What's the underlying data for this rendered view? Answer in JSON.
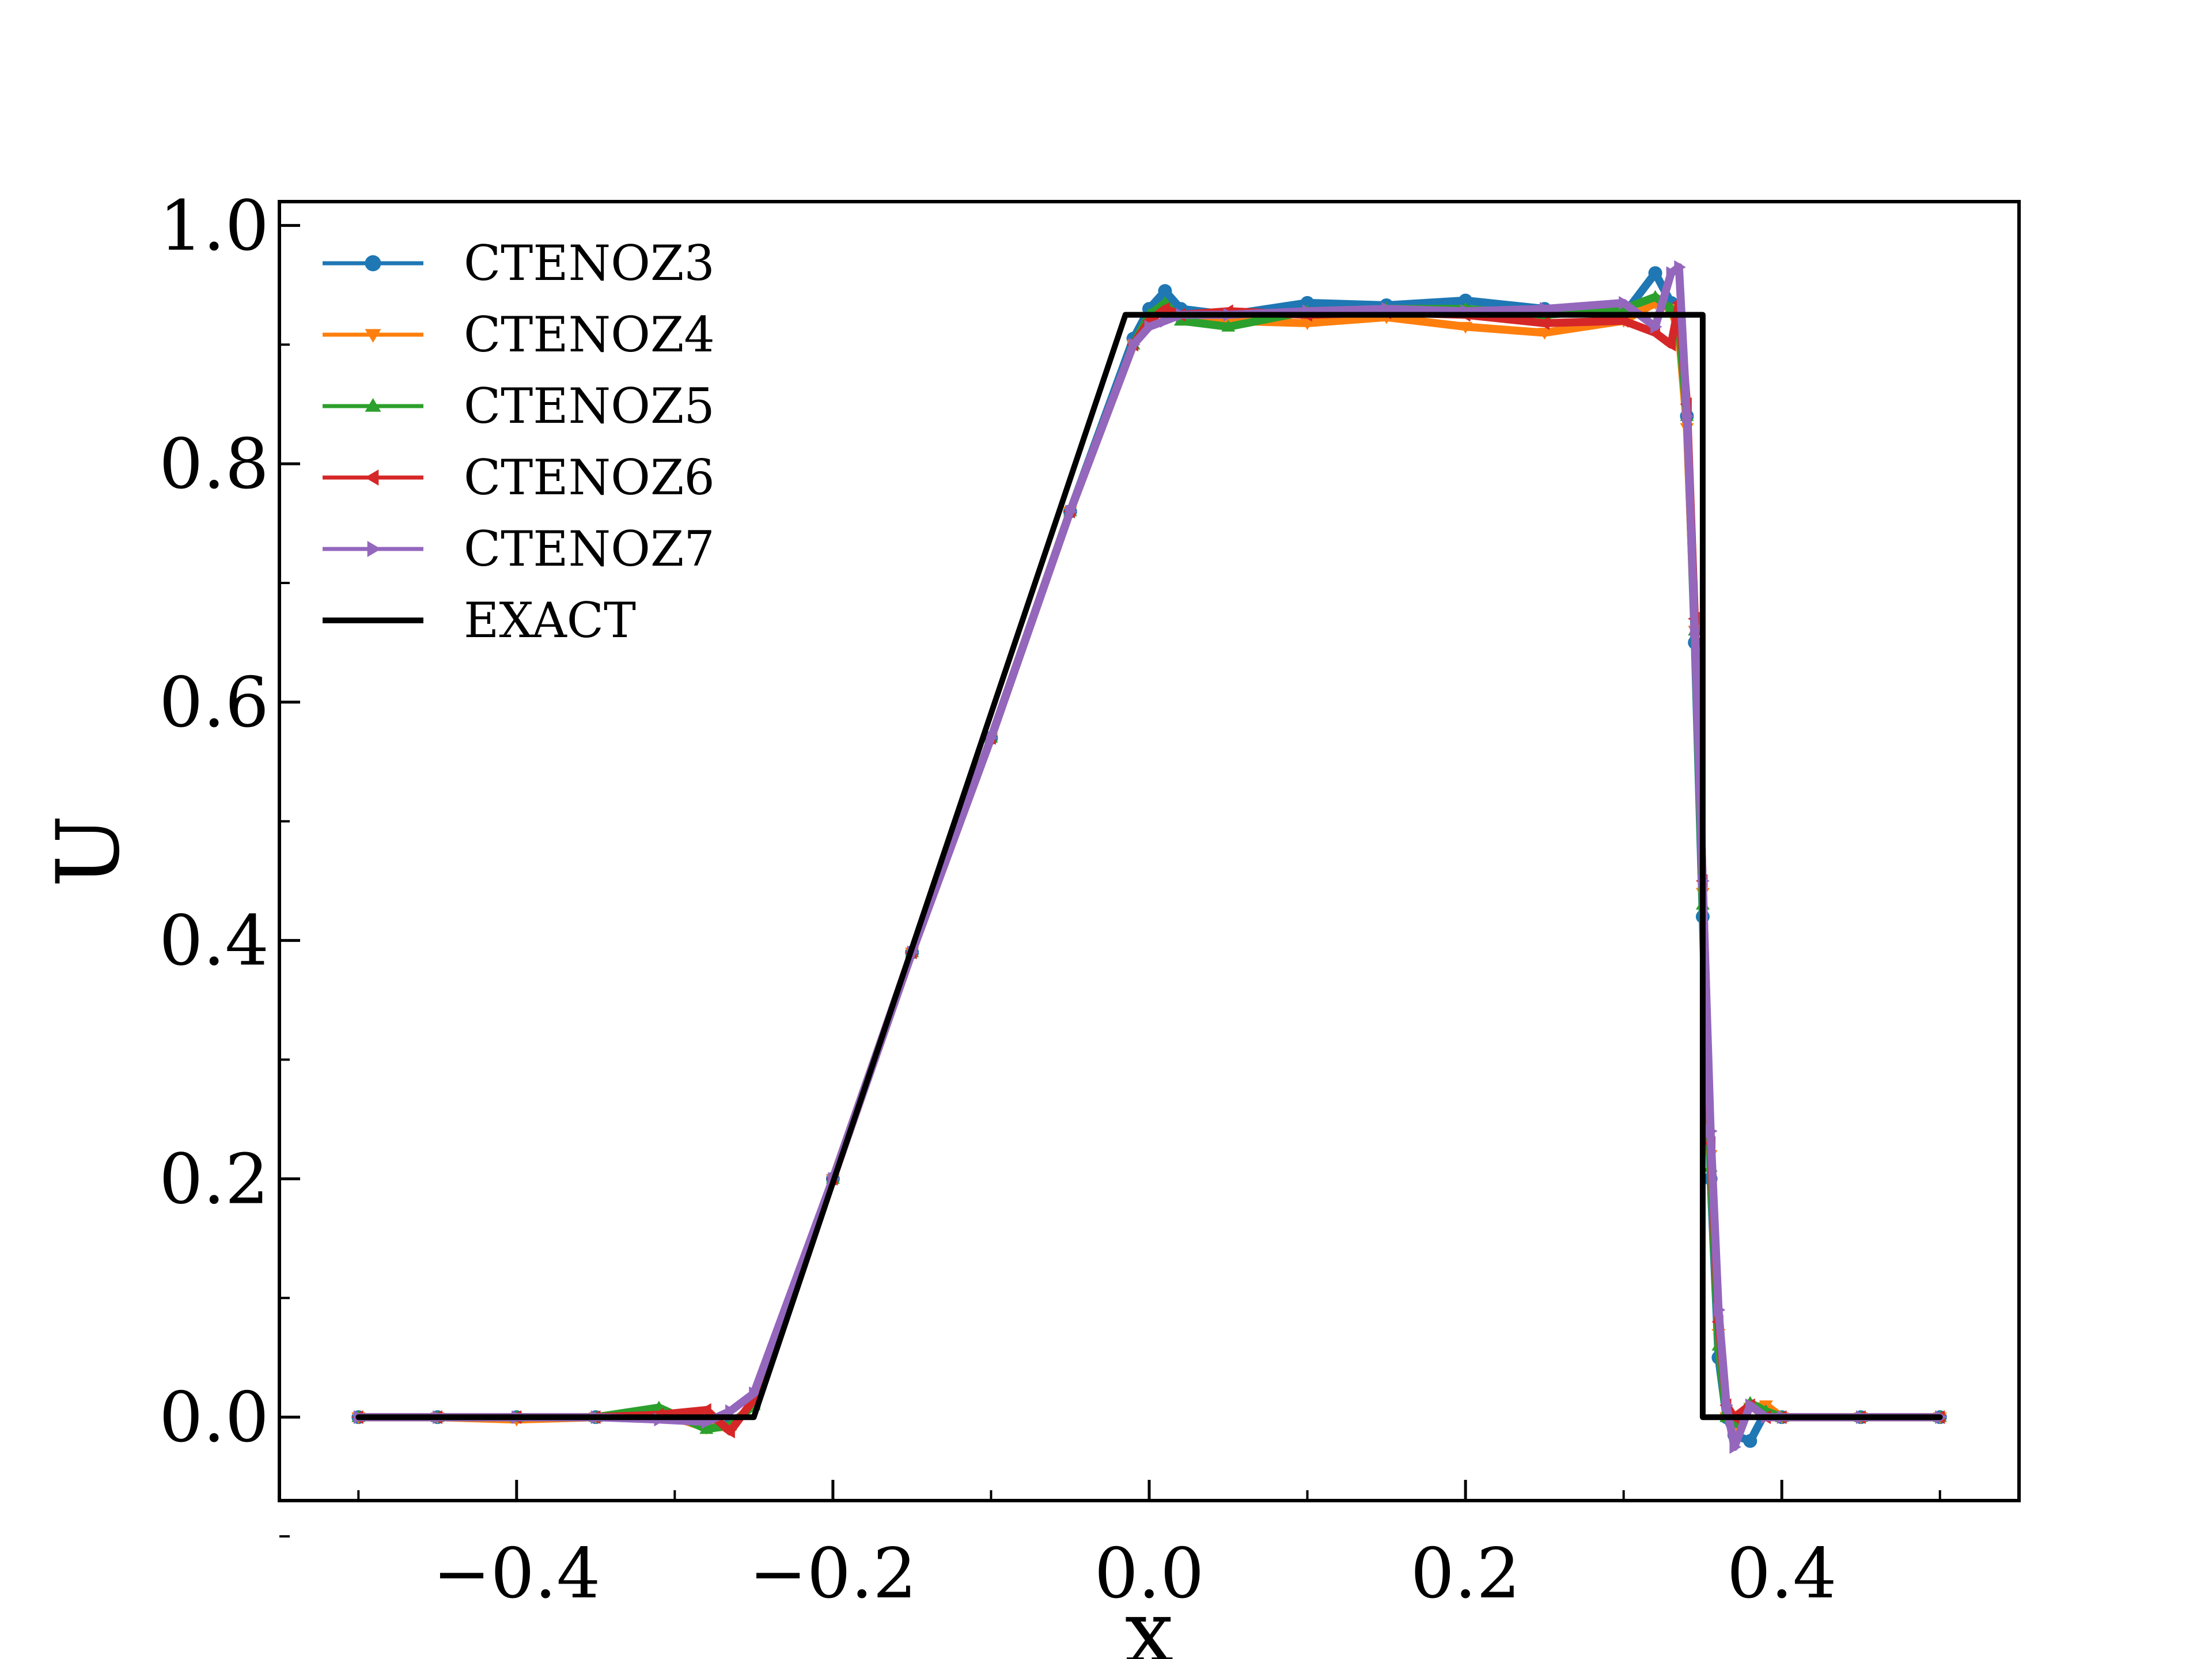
{
  "chart_data": {
    "type": "line",
    "title": "",
    "xlabel": "x",
    "ylabel": "U",
    "xlim": [
      -0.55,
      0.55
    ],
    "ylim": [
      -0.07,
      1.02
    ],
    "xticks": [
      -0.4,
      -0.2,
      0.0,
      0.2,
      0.4
    ],
    "xtick_labels": [
      "−0.4",
      "−0.2",
      "0.0",
      "0.2",
      "0.4"
    ],
    "yticks": [
      0.0,
      0.2,
      0.4,
      0.6,
      0.8,
      1.0
    ],
    "ytick_labels": [
      "0.0",
      "0.2",
      "0.4",
      "0.6",
      "0.8",
      "1.0"
    ],
    "grid": false,
    "legend_position": "top-left",
    "series": [
      {
        "name": "CTENOZ3",
        "color": "#1f77b4",
        "marker": "circle",
        "x": [
          -0.5,
          -0.45,
          -0.4,
          -0.35,
          -0.31,
          -0.28,
          -0.265,
          -0.25,
          -0.2,
          -0.15,
          -0.1,
          -0.05,
          -0.01,
          0.0,
          0.01,
          0.02,
          0.05,
          0.1,
          0.15,
          0.2,
          0.25,
          0.3,
          0.32,
          0.33,
          0.335,
          0.34,
          0.345,
          0.35,
          0.355,
          0.36,
          0.365,
          0.37,
          0.38,
          0.39,
          0.4,
          0.45,
          0.5
        ],
        "y": [
          0.0,
          0.0,
          0.0,
          0.0,
          0.003,
          -0.008,
          -0.006,
          0.01,
          0.2,
          0.39,
          0.57,
          0.76,
          0.905,
          0.93,
          0.945,
          0.93,
          0.925,
          0.935,
          0.933,
          0.937,
          0.93,
          0.925,
          0.96,
          0.935,
          0.92,
          0.84,
          0.65,
          0.42,
          0.2,
          0.05,
          0.0,
          -0.015,
          -0.02,
          0.005,
          0.0,
          0.0,
          0.0
        ]
      },
      {
        "name": "CTENOZ4",
        "color": "#ff7f0e",
        "marker": "triangle-down",
        "x": [
          -0.5,
          -0.45,
          -0.4,
          -0.35,
          -0.31,
          -0.28,
          -0.265,
          -0.25,
          -0.2,
          -0.15,
          -0.1,
          -0.05,
          -0.01,
          0.0,
          0.01,
          0.02,
          0.05,
          0.1,
          0.15,
          0.2,
          0.25,
          0.3,
          0.32,
          0.33,
          0.335,
          0.34,
          0.345,
          0.35,
          0.355,
          0.36,
          0.365,
          0.37,
          0.38,
          0.39,
          0.4,
          0.45,
          0.5
        ],
        "y": [
          0.0,
          0.0,
          -0.002,
          0.0,
          0.004,
          -0.009,
          -0.008,
          0.012,
          0.2,
          0.39,
          0.57,
          0.76,
          0.9,
          0.92,
          0.93,
          0.922,
          0.92,
          0.918,
          0.923,
          0.915,
          0.91,
          0.92,
          0.935,
          0.93,
          0.91,
          0.83,
          0.66,
          0.44,
          0.22,
          0.07,
          0.0,
          -0.01,
          0.008,
          0.01,
          0.0,
          0.0,
          0.0
        ]
      },
      {
        "name": "CTENOZ5",
        "color": "#2ca02c",
        "marker": "triangle-up",
        "x": [
          -0.5,
          -0.45,
          -0.4,
          -0.35,
          -0.31,
          -0.28,
          -0.265,
          -0.25,
          -0.2,
          -0.15,
          -0.1,
          -0.05,
          -0.01,
          0.0,
          0.01,
          0.02,
          0.05,
          0.1,
          0.15,
          0.2,
          0.25,
          0.3,
          0.32,
          0.33,
          0.335,
          0.34,
          0.345,
          0.35,
          0.355,
          0.36,
          0.365,
          0.37,
          0.38,
          0.39,
          0.4,
          0.45,
          0.5
        ],
        "y": [
          0.0,
          0.0,
          0.0,
          0.0,
          0.008,
          -0.01,
          -0.007,
          0.01,
          0.2,
          0.39,
          0.57,
          0.76,
          0.9,
          0.925,
          0.935,
          0.92,
          0.915,
          0.928,
          0.93,
          0.93,
          0.925,
          0.93,
          0.94,
          0.93,
          0.915,
          0.84,
          0.66,
          0.43,
          0.21,
          0.06,
          0.0,
          -0.005,
          0.012,
          0.005,
          0.0,
          0.0,
          0.0
        ]
      },
      {
        "name": "CTENOZ6",
        "color": "#d62728",
        "marker": "triangle-left",
        "x": [
          -0.5,
          -0.45,
          -0.4,
          -0.35,
          -0.31,
          -0.28,
          -0.265,
          -0.25,
          -0.2,
          -0.15,
          -0.1,
          -0.05,
          -0.01,
          0.0,
          0.01,
          0.02,
          0.05,
          0.1,
          0.15,
          0.2,
          0.25,
          0.3,
          0.32,
          0.33,
          0.335,
          0.34,
          0.345,
          0.35,
          0.355,
          0.36,
          0.365,
          0.37,
          0.38,
          0.39,
          0.4,
          0.45,
          0.5
        ],
        "y": [
          0.0,
          0.0,
          0.0,
          0.0,
          0.002,
          0.006,
          -0.012,
          0.015,
          0.2,
          0.39,
          0.57,
          0.76,
          0.9,
          0.92,
          0.93,
          0.925,
          0.928,
          0.925,
          0.927,
          0.925,
          0.918,
          0.92,
          0.91,
          0.9,
          0.935,
          0.85,
          0.67,
          0.45,
          0.23,
          0.08,
          0.01,
          0.0,
          0.01,
          0.0,
          0.0,
          0.0,
          0.0
        ]
      },
      {
        "name": "CTENOZ7",
        "color": "#9467bd",
        "marker": "triangle-right",
        "x": [
          -0.5,
          -0.45,
          -0.4,
          -0.35,
          -0.31,
          -0.28,
          -0.265,
          -0.25,
          -0.2,
          -0.15,
          -0.1,
          -0.05,
          -0.01,
          0.0,
          0.01,
          0.02,
          0.05,
          0.1,
          0.15,
          0.2,
          0.25,
          0.3,
          0.32,
          0.33,
          0.335,
          0.34,
          0.345,
          0.35,
          0.355,
          0.36,
          0.365,
          0.37,
          0.38,
          0.39,
          0.4,
          0.45,
          0.5
        ],
        "y": [
          0.0,
          0.0,
          0.0,
          0.0,
          -0.002,
          -0.004,
          0.005,
          0.02,
          0.2,
          0.39,
          0.57,
          0.76,
          0.9,
          0.915,
          0.92,
          0.925,
          0.925,
          0.928,
          0.93,
          0.928,
          0.93,
          0.935,
          0.915,
          0.96,
          0.965,
          0.84,
          0.66,
          0.45,
          0.24,
          0.09,
          0.01,
          -0.025,
          0.01,
          0.0,
          0.0,
          0.0,
          0.0
        ]
      },
      {
        "name": "EXACT",
        "color": "#000000",
        "marker": "none",
        "x": [
          -0.5,
          -0.25,
          -0.015,
          0.35,
          0.35,
          0.5
        ],
        "y": [
          0.0,
          0.0,
          0.925,
          0.925,
          0.0,
          0.0
        ]
      }
    ]
  }
}
